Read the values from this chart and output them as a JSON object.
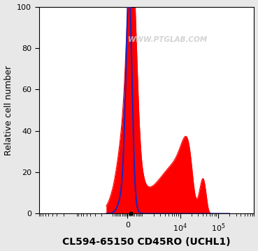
{
  "xlabel": "CL594-65150 CD45RO (UCHL1)",
  "ylabel": "Relative cell number",
  "watermark": "WWW.PTGLAB.COM",
  "ylim": [
    0,
    100
  ],
  "yticks": [
    0,
    20,
    40,
    60,
    80,
    100
  ],
  "fig_bg_color": "#e8e8e8",
  "plot_bg_color": "#ffffff",
  "blue_line_color": "#2222bb",
  "red_fill_color": "#ff0000",
  "red_fill_alpha": 1.0,
  "xlabel_fontsize": 10,
  "ylabel_fontsize": 9,
  "tick_fontsize": 8,
  "linthresh": 1000,
  "linscale": 0.35
}
